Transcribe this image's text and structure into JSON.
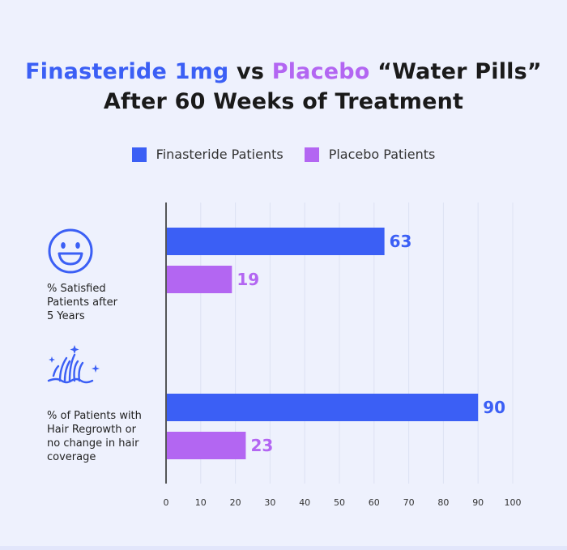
{
  "title": {
    "part1": "Finasteride 1mg",
    "part2": " vs ",
    "part3": "Placebo",
    "part4": " “Water Pills”",
    "line2": "After 60 Weeks of Treatment"
  },
  "colors": {
    "finasteride": "#3b5ff5",
    "placebo": "#b366f2",
    "text": "#1a1a1a"
  },
  "icons": {
    "group1": "smiley-face-icon",
    "group2": "hair-follicle-sparkle-icon"
  },
  "chart_data": {
    "type": "bar",
    "orientation": "horizontal",
    "title": "Finasteride 1mg vs Placebo “Water Pills” After 60 Weeks of Treatment",
    "categories": [
      "% Satisfied Patients after 5 Years",
      "% of Patients with Hair Regrowth or no change in hair coverage"
    ],
    "category_lines": [
      [
        "% Satisfied",
        "Patients after",
        "5 Years"
      ],
      [
        "% of Patients with",
        "Hair Regrowth or",
        "no change in hair",
        "coverage"
      ]
    ],
    "series": [
      {
        "name": "Finasteride Patients",
        "values": [
          63,
          90
        ],
        "labels": [
          "63",
          "90"
        ]
      },
      {
        "name": "Placebo Patients",
        "values": [
          19,
          23
        ],
        "labels": [
          "19",
          "23"
        ]
      }
    ],
    "xlim": [
      0,
      100
    ],
    "xticks": [
      "0",
      "10",
      "20",
      "30",
      "40",
      "50",
      "60",
      "70",
      "80",
      "90",
      "100"
    ],
    "xlabel": "",
    "ylabel": "",
    "grid": true,
    "legend": "top-center"
  }
}
